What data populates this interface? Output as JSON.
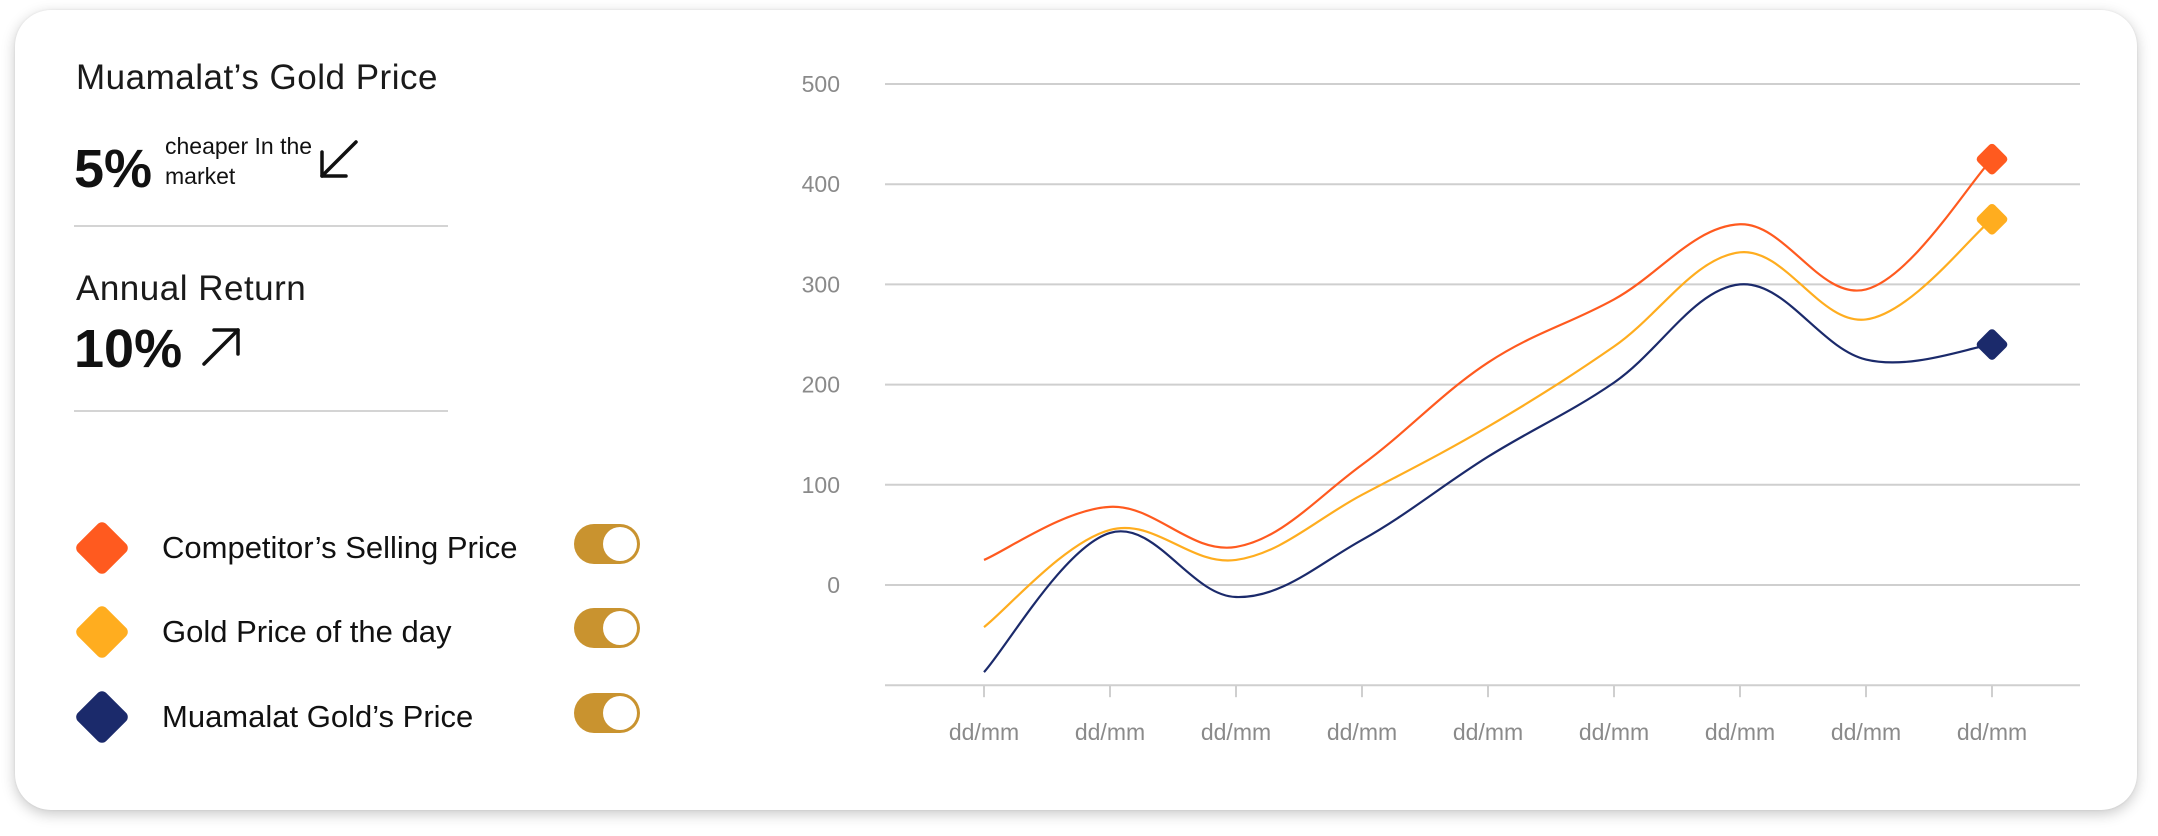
{
  "stats": {
    "gold_price": {
      "title": "Muamalat’s Gold Price",
      "value": "5%",
      "note": "cheaper In the market",
      "direction_icon": "arrow-down-left-icon"
    },
    "annual_return": {
      "title": "Annual Return",
      "value": "10%",
      "direction_icon": "arrow-up-right-icon"
    }
  },
  "legend": [
    {
      "label": "Competitor’s Selling Price",
      "color": "#ff5a1f",
      "toggle_on": true
    },
    {
      "label": "Gold Price of the day",
      "color": "#ffad1f",
      "toggle_on": true
    },
    {
      "label": "Muamalat Gold’s Price",
      "color": "#1b2a6b",
      "toggle_on": true
    }
  ],
  "colors": {
    "toggle": "#c9932f",
    "grid": "#cfcfcf",
    "tick_text": "#8a8a8a"
  },
  "chart_data": {
    "type": "line",
    "categories": [
      "dd/mm",
      "dd/mm",
      "dd/mm",
      "dd/mm",
      "dd/mm",
      "dd/mm",
      "dd/mm",
      "dd/mm",
      "dd/mm"
    ],
    "y_ticks": [
      500,
      400,
      300,
      200,
      100,
      0
    ],
    "ylim": [
      -100,
      500
    ],
    "grid": true,
    "series": [
      {
        "name": "Competitor’s Selling Price",
        "color": "#ff5a1f",
        "values": [
          25,
          78,
          38,
          120,
          222,
          285,
          360,
          295,
          425
        ],
        "end_marker": true
      },
      {
        "name": "Gold Price of the day",
        "color": "#ffad1f",
        "values": [
          -42,
          55,
          25,
          90,
          158,
          238,
          332,
          265,
          365
        ],
        "end_marker": true
      },
      {
        "name": "Muamalat Gold’s Price",
        "color": "#1b2a6b",
        "values": [
          -87,
          52,
          -12,
          45,
          128,
          202,
          300,
          225,
          240
        ],
        "end_marker": true
      }
    ]
  }
}
